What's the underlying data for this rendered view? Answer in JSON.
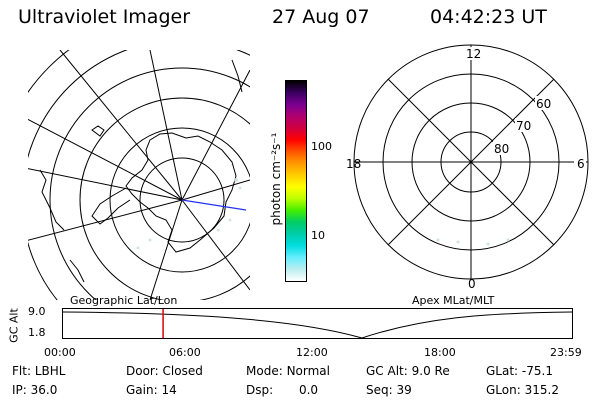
{
  "header": {
    "instrument": "Ultraviolet Imager",
    "date": "27 Aug 07",
    "time": "04:42:23 UT"
  },
  "colorbar": {
    "unit_label": "photon cm⁻²s⁻¹",
    "ticks": [
      "100",
      "10"
    ],
    "colors": [
      "#000000",
      "#3a0060",
      "#7a0090",
      "#b00070",
      "#d00040",
      "#ff0000",
      "#ff5500",
      "#ff9900",
      "#ffcc00",
      "#ffff00",
      "#bbff00",
      "#44ee00",
      "#00cc66",
      "#00ccaa",
      "#00dddd",
      "#66eeff",
      "#bbeeee",
      "#ffffff"
    ]
  },
  "geo_map": {
    "label": "Geographic Lat/Lon"
  },
  "apex_map": {
    "label": "Apex MLat/MLT",
    "mlt_labels": {
      "top": "12",
      "left": "18",
      "right": "6",
      "bottom": "0"
    },
    "lat_labels": [
      "60",
      "70",
      "80"
    ]
  },
  "timeline": {
    "ylabel": "GC Alt",
    "y_ticks": [
      "9.0",
      "1.8"
    ],
    "x_ticks": [
      "00:00",
      "06:00",
      "12:00",
      "18:00",
      "23:59"
    ],
    "marker_time_hours": 4.71,
    "marker_color": "#dd0000"
  },
  "info": {
    "filter_label": "Flt:",
    "filter_value": "LBHL",
    "ip_label": "IP:",
    "ip_value": "36.0",
    "door_label": "Door:",
    "door_value": "Closed",
    "gain_label": "Gain:",
    "gain_value": "14",
    "mode_label": "Mode:",
    "mode_value": "Normal",
    "dsp_label": "Dsp:",
    "dsp_value": "0.0",
    "gcalt_label": "GC Alt:",
    "gcalt_value": "9.0 Re",
    "seq_label": "Seq:",
    "seq_value": "39",
    "glat_label": "GLat:",
    "glat_value": "-75.1",
    "glon_label": "GLon:",
    "glon_value": "315.2"
  }
}
